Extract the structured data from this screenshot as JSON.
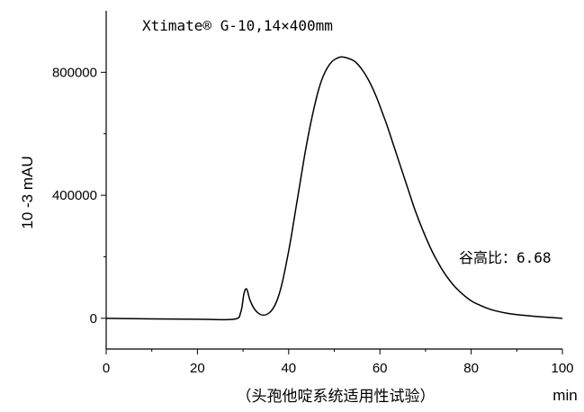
{
  "chart_data": {
    "type": "line",
    "title": "Xtimate® G-10,14×400mm",
    "xlabel": "min",
    "ylabel": "10 -3 mAU",
    "caption": "（头孢他啶系统适用性试验）",
    "annotation": "谷高比：6.68",
    "xlim": [
      0,
      100
    ],
    "ylim": [
      -100000,
      1000000
    ],
    "x_ticks": [
      0,
      20,
      40,
      60,
      80,
      100
    ],
    "x_tick_labels": [
      "0",
      "20",
      "40",
      "60",
      "80",
      "100"
    ],
    "y_ticks": [
      0,
      400000,
      800000
    ],
    "y_tick_labels": [
      "0",
      "400000",
      "800000"
    ],
    "grid": false,
    "legend": "none",
    "line_color": "#000000",
    "series": [
      {
        "x": [
          0,
          10,
          20,
          28,
          29.5,
          30.2,
          30.8,
          31.5,
          32.5,
          33.5,
          34.5,
          35.5,
          36.5,
          37.5,
          38.5,
          39.5,
          40.5,
          41.5,
          42.5,
          43.5,
          44.5,
          45.5,
          46.5,
          47.5,
          48.5,
          49.5,
          50.5,
          51.5,
          52.5,
          53.5,
          54.5,
          55.5,
          56.5,
          57.5,
          58.5,
          59.5,
          60.5,
          61.5,
          62.5,
          63.5,
          64.5,
          65.5,
          66.5,
          67.5,
          68.5,
          69.5,
          70.5,
          71.5,
          72.5,
          74,
          76,
          78,
          80,
          82,
          84,
          86,
          88,
          90,
          92,
          95,
          100
        ],
        "y": [
          0,
          -2000,
          -3000,
          -3000,
          20000,
          80000,
          95000,
          60000,
          30000,
          15000,
          10000,
          15000,
          30000,
          60000,
          110000,
          180000,
          260000,
          350000,
          440000,
          530000,
          610000,
          680000,
          740000,
          785000,
          815000,
          835000,
          845000,
          850000,
          848000,
          843000,
          835000,
          820000,
          800000,
          775000,
          745000,
          710000,
          670000,
          630000,
          585000,
          540000,
          495000,
          450000,
          405000,
          360000,
          320000,
          283000,
          248000,
          216000,
          188000,
          150000,
          110000,
          80000,
          57000,
          42000,
          30000,
          22000,
          16000,
          12000,
          9000,
          5000,
          0
        ]
      }
    ]
  }
}
